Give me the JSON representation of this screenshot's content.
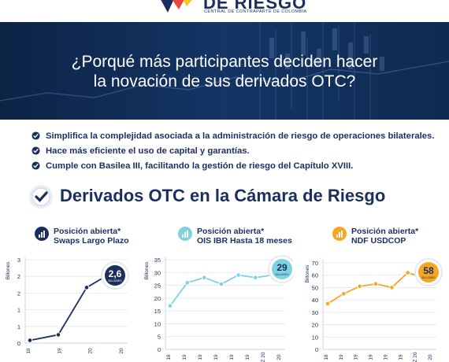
{
  "brand": {
    "name": "DE RIESGO",
    "tagline": "CENTRAL DE CONTRAPARTE DE COLOMBIA"
  },
  "hero": {
    "line1": "¿Porqué más participantes deciden hacer",
    "line2": "la novación de sus derivados OTC?"
  },
  "bullets": [
    "Simplifica la complejidad asociada a la administración de riesgo de operaciones bilaterales.",
    "Hace más eficiente el uso de capital y garantías.",
    "Cumple con Basilea III, facilitando la gestión de riesgo del Capítulo XVIII."
  ],
  "section": {
    "title": "Derivados OTC en la Cámara de Riesgo"
  },
  "colors": {
    "navy": "#1b2f5e",
    "teal": "#7ed3de",
    "orange": "#f5a623"
  },
  "chart_data": [
    {
      "type": "line",
      "title_line1": "Posición abierta*",
      "title_line2": "Swaps Largo Plazo",
      "ylabel": "Billones",
      "ylim": [
        0,
        3
      ],
      "yticks": [
        "0",
        "1",
        "1",
        "2",
        "2",
        "3"
      ],
      "xticks": [
        "19",
        "19",
        "20",
        "20"
      ],
      "values": [
        0.1,
        0.3,
        2.0,
        2.6
      ],
      "badge_value": "2,6",
      "badge_unit": "BILLONES",
      "color": "#1b2f5e",
      "icon": "bar-chart-icon"
    },
    {
      "type": "line",
      "title_line1": "Posición abierta*",
      "title_line2": "OIS IBR Hasta 18 meses",
      "ylabel": "Billones",
      "ylim": [
        0,
        35
      ],
      "yticks": [
        "0",
        "5",
        "10",
        "15",
        "20",
        "25",
        "30",
        "35"
      ],
      "xticks": [
        "18",
        "19",
        "19",
        "19",
        "19",
        "19",
        "Z 20",
        "20"
      ],
      "values": [
        17,
        26,
        28,
        25.5,
        29,
        28,
        29
      ],
      "badge_value": "29",
      "badge_unit": "BILLONES",
      "color": "#7ed3de",
      "icon": "bar-chart-icon"
    },
    {
      "type": "line",
      "title_line1": "Posición abierta*",
      "title_line2": "NDF USDCOP",
      "ylabel": "Billones",
      "ylim": [
        0,
        70
      ],
      "yticks": [
        "0",
        "10",
        "20",
        "30",
        "40",
        "50",
        "60",
        "70"
      ],
      "xticks": [
        "18",
        "19",
        "19",
        "19",
        "19",
        "19",
        "Z 20",
        "20"
      ],
      "values": [
        37,
        45,
        51,
        53,
        50,
        62,
        58
      ],
      "badge_value": "58",
      "badge_unit": "BILLONES",
      "color": "#f5a623",
      "icon": "bar-chart-icon"
    }
  ]
}
